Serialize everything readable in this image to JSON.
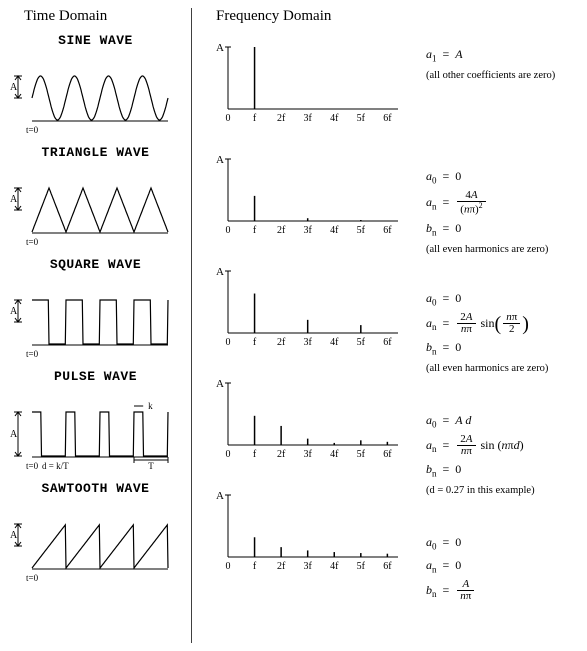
{
  "headers": {
    "time": "Time Domain",
    "freq": "Frequency Domain"
  },
  "axis": {
    "y_label": "A",
    "amplitude_label": "A",
    "t0_label": "t=0",
    "x_labels": [
      "0",
      "f",
      "2f",
      "3f",
      "4f",
      "5f",
      "6f"
    ],
    "color": "#000000",
    "background": "#ffffff",
    "line_width": 1
  },
  "spectrum_ymax": 1.0,
  "waves": [
    {
      "name": "SINE WAVE",
      "time_type": "sine",
      "cycles": 4,
      "harmonics": [
        1,
        0,
        0,
        0,
        0,
        0
      ],
      "equations": [
        {
          "type": "plain",
          "html": "<span class='it'>a</span><span class='sub'>1</span>&nbsp;&nbsp;=&nbsp;&nbsp;<span class='it'>A</span>"
        },
        {
          "type": "note",
          "text": "(all other coefficients are zero)"
        }
      ]
    },
    {
      "name": "TRIANGLE WAVE",
      "time_type": "triangle",
      "cycles": 4,
      "harmonics": [
        0.4052,
        0,
        0.045,
        0,
        0.0162,
        0
      ],
      "equations": [
        {
          "type": "plain",
          "html": "<span class='it'>a</span><span class='sub'>0</span>&nbsp;&nbsp;=&nbsp;&nbsp;0"
        },
        {
          "type": "frac",
          "lhs": "<span class='it'>a</span><span class='sub'>n</span>",
          "num": "4<span class='it'>A</span>",
          "den": "(<span class='it'>n</span>&pi;)<sup style='font-size:8px'>2</sup>"
        },
        {
          "type": "plain",
          "html": "<span class='it'>b</span><span class='sub'>n</span>&nbsp;&nbsp;=&nbsp;&nbsp;0"
        },
        {
          "type": "note",
          "text": "(all even harmonics are zero)"
        }
      ]
    },
    {
      "name": "SQUARE WAVE",
      "time_type": "square",
      "cycles": 4,
      "harmonics": [
        0.6366,
        0,
        0.2122,
        0,
        0.1273,
        0
      ],
      "equations": [
        {
          "type": "plain",
          "html": "<span class='it'>a</span><span class='sub'>0</span>&nbsp;&nbsp;=&nbsp;&nbsp;0"
        },
        {
          "type": "frac_sin",
          "lhs": "<span class='it'>a</span><span class='sub'>n</span>",
          "num": "2<span class='it'>A</span>",
          "den": "<span class='it'>n</span>&pi;",
          "sin_num": "<span class='it'>n</span>&pi;",
          "sin_den": "2"
        },
        {
          "type": "plain",
          "html": "<span class='it'>b</span><span class='sub'>n</span>&nbsp;&nbsp;=&nbsp;&nbsp;0"
        },
        {
          "type": "note",
          "text": "(all even harmonics are zero)"
        }
      ]
    },
    {
      "name": "PULSE WAVE",
      "time_type": "pulse",
      "cycles": 4,
      "duty": 0.27,
      "T_label": "T",
      "k_label": "k",
      "d_label": "d = k/T",
      "harmonics": [
        0.4709,
        0.3076,
        0.1026,
        0.0337,
        0.0755,
        0.0513
      ],
      "equations": [
        {
          "type": "plain",
          "html": "<span class='it'>a</span><span class='sub'>0</span>&nbsp;&nbsp;=&nbsp;&nbsp;<span class='it'>A d</span>"
        },
        {
          "type": "frac_sin2",
          "lhs": "<span class='it'>a</span><span class='sub'>n</span>",
          "num": "2<span class='it'>A</span>",
          "den": "<span class='it'>n</span>&pi;",
          "arg": "<span class='it'>n</span>&pi;<span class='it'>d</span>"
        },
        {
          "type": "plain",
          "html": "<span class='it'>b</span><span class='sub'>n</span>&nbsp;&nbsp;=&nbsp;&nbsp;0"
        },
        {
          "type": "note",
          "text": "(d = 0.27 in this example)"
        }
      ]
    },
    {
      "name": "SAWTOOTH WAVE",
      "time_type": "sawtooth",
      "cycles": 4,
      "harmonics": [
        0.3183,
        0.1592,
        0.1061,
        0.0796,
        0.0637,
        0.0531
      ],
      "equations": [
        {
          "type": "plain",
          "html": "<span class='it'>a</span><span class='sub'>0</span>&nbsp;&nbsp;=&nbsp;&nbsp;0"
        },
        {
          "type": "plain",
          "html": "<span class='it'>a</span><span class='sub'>n</span>&nbsp;&nbsp;=&nbsp;&nbsp;0"
        },
        {
          "type": "frac",
          "lhs": "<span class='it'>b</span><span class='sub'>n</span>",
          "num": "<span class='it'>A</span>",
          "den": "<span class='it'>n</span>&pi;"
        }
      ]
    }
  ]
}
